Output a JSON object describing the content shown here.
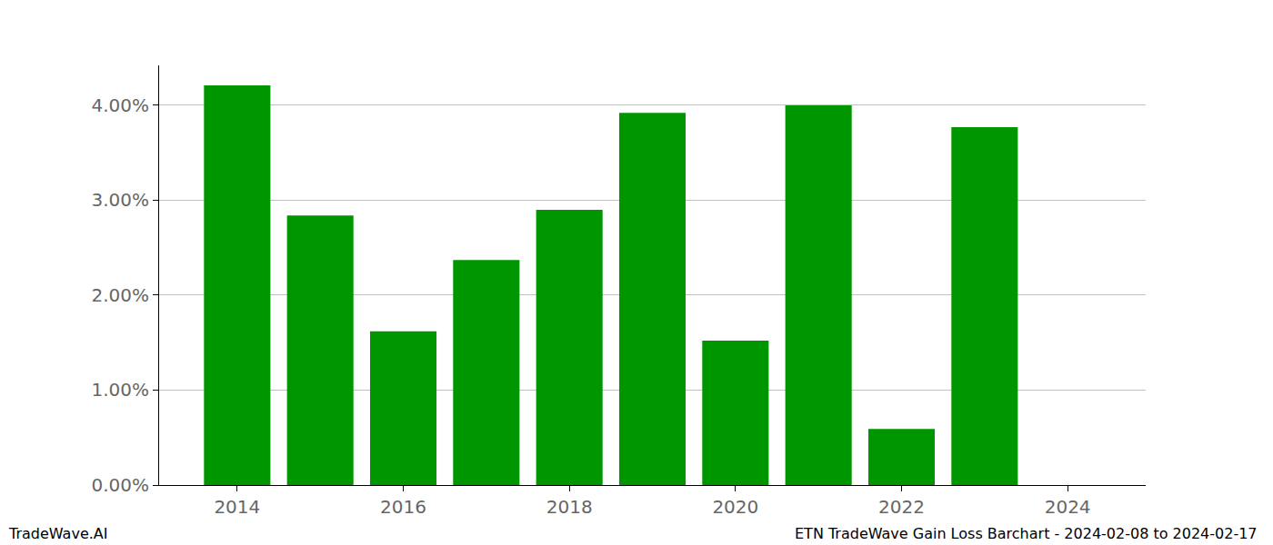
{
  "chart_data": {
    "type": "bar",
    "x": [
      2014,
      2015,
      2016,
      2017,
      2018,
      2019,
      2020,
      2021,
      2022,
      2023,
      2024
    ],
    "values": [
      4.21,
      2.84,
      1.62,
      2.37,
      2.9,
      3.92,
      1.52,
      4.0,
      0.59,
      3.77,
      0
    ],
    "color": "#009600",
    "xlim": [
      2013.06,
      2024.94
    ],
    "xticks": [
      2014,
      2016,
      2018,
      2020,
      2022,
      2024
    ],
    "ylim": [
      0,
      4.42
    ],
    "yticks": [
      {
        "value": 0,
        "label": "0.00%"
      },
      {
        "value": 1,
        "label": "1.00%"
      },
      {
        "value": 2,
        "label": "2.00%"
      },
      {
        "value": 3,
        "label": "3.00%"
      },
      {
        "value": 4,
        "label": "4.00%"
      }
    ],
    "grid": true,
    "annotations": [
      "TradeWave.AI",
      "ETN TradeWave Gain Loss Barchart - 2024-02-08 to 2024-02-17"
    ]
  }
}
